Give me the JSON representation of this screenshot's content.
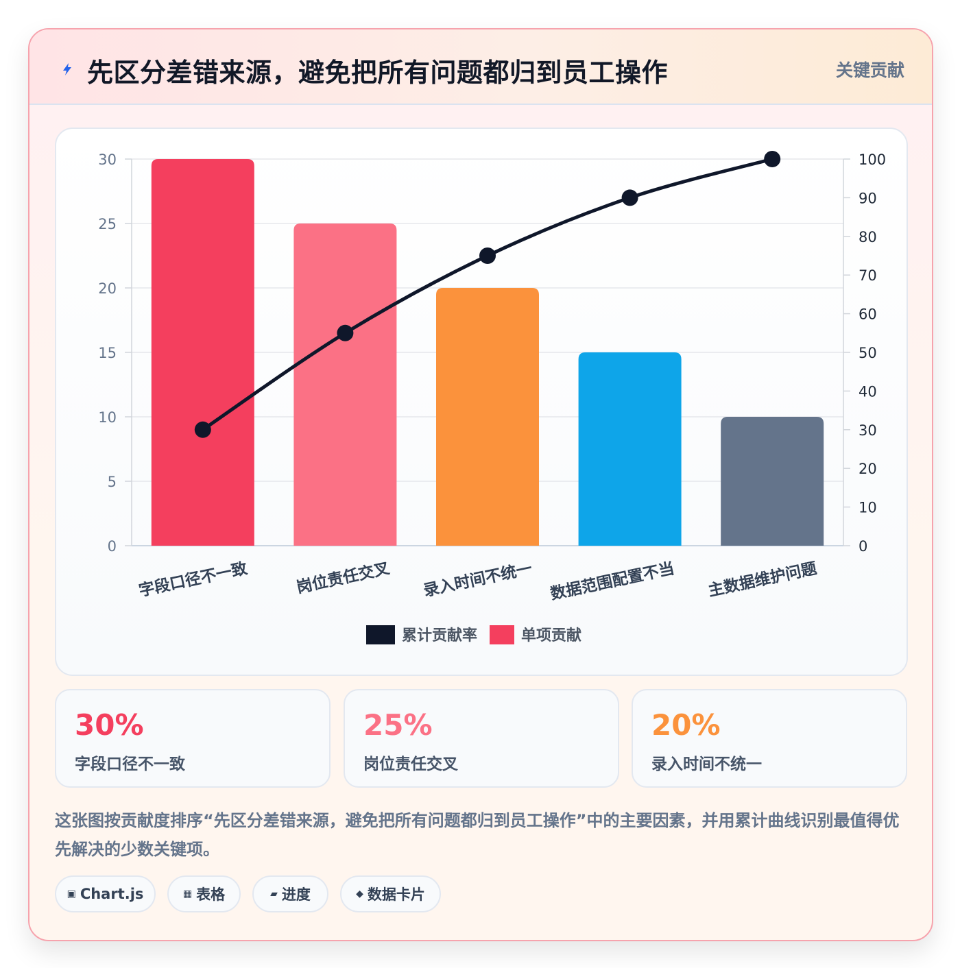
{
  "header": {
    "icon": "lightning-icon",
    "title": "先区分差错来源，避免把所有问题都归到员工操作",
    "tag": "关键贡献"
  },
  "colors": {
    "accent_red": "#f43f5e",
    "pink": "#fb7185",
    "orange": "#fb923c",
    "blue": "#0ea5e9",
    "slate": "#64748b",
    "line": "#0f172a"
  },
  "chart_data": {
    "type": "bar",
    "categories": [
      "字段口径不一致",
      "岗位责任交叉",
      "录入时间不统一",
      "数据范围配置不当",
      "主数据维护问题"
    ],
    "series": [
      {
        "name": "单项贡献",
        "type": "bar",
        "axis": "left",
        "values": [
          30,
          25,
          20,
          15,
          10
        ],
        "colors": [
          "#f43f5e",
          "#fb7185",
          "#fb923c",
          "#0ea5e9",
          "#64748b"
        ]
      },
      {
        "name": "累计贡献率",
        "type": "line",
        "axis": "right",
        "values": [
          30,
          55,
          75,
          90,
          100
        ],
        "color": "#0f172a"
      }
    ],
    "y_left": {
      "min": 0,
      "max": 30,
      "ticks": [
        0,
        5,
        10,
        15,
        20,
        25,
        30
      ]
    },
    "y_right": {
      "min": 0,
      "max": 100,
      "ticks": [
        0,
        10,
        20,
        30,
        40,
        50,
        60,
        70,
        80,
        90,
        100
      ]
    },
    "legend": {
      "position": "bottom",
      "items": [
        {
          "label": "累计贡献率",
          "color": "#0f172a"
        },
        {
          "label": "单项贡献",
          "color": "#f43f5e"
        }
      ]
    },
    "grid": true
  },
  "stats": [
    {
      "value": "30%",
      "label": "字段口径不一致",
      "color": "#f43f5e"
    },
    {
      "value": "25%",
      "label": "岗位责任交叉",
      "color": "#fb7185"
    },
    {
      "value": "20%",
      "label": "录入时间不统一",
      "color": "#fb923c"
    }
  ],
  "description": "这张图按贡献度排序“先区分差错来源，避免把所有问题都归到员工操作”中的主要因素，并用累计曲线识别最值得优先解决的少数关键项。",
  "tags": [
    {
      "icon": "chart-icon",
      "glyph": "▣",
      "label": "Chart.js"
    },
    {
      "icon": "table-icon",
      "glyph": "▦",
      "label": "表格"
    },
    {
      "icon": "progress-icon",
      "glyph": "▰",
      "label": "进度"
    },
    {
      "icon": "diamond-icon",
      "glyph": "◆",
      "label": "数据卡片"
    }
  ]
}
